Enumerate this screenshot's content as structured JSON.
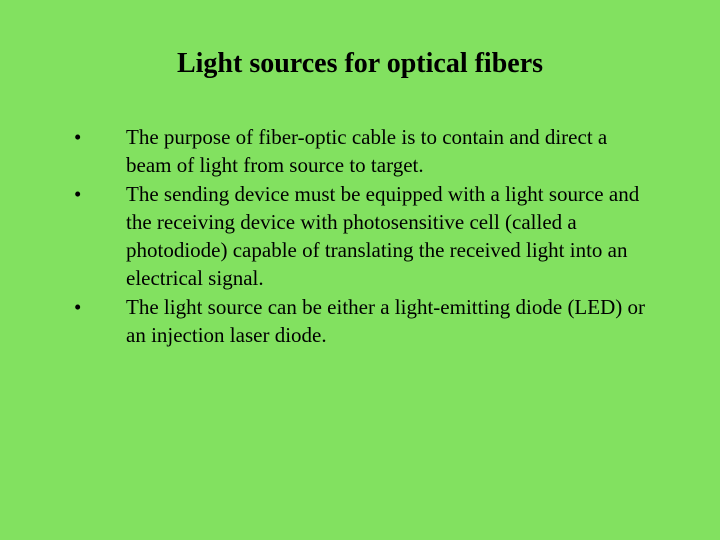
{
  "slide": {
    "background_color": "#82e160",
    "text_color": "#000000",
    "font_family": "Times New Roman",
    "title": "Light sources for optical fibers",
    "title_fontsize": 28,
    "title_fontweight": "bold",
    "body_fontsize": 21,
    "bullet_marker": "•",
    "bullets": [
      "The purpose of fiber-optic cable is to contain and direct a beam of light from source to target.",
      "The sending device must be equipped with a light source and the receiving device with photosensitive cell (called a photodiode) capable of translating  the received light into   an electrical signal.",
      "The light source can be either a light-emitting diode (LED) or an injection laser diode."
    ]
  }
}
